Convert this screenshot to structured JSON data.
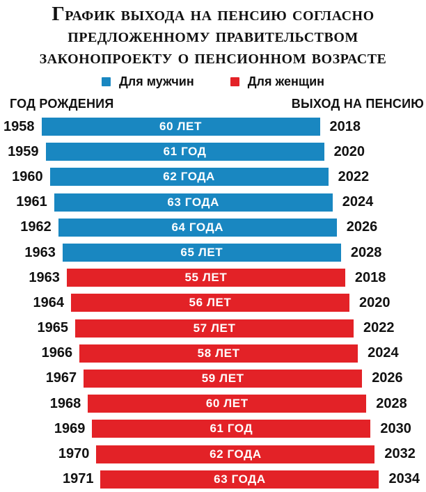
{
  "title": {
    "lines": [
      "График выхода на пенсию согласно",
      "предложенному правительством",
      "законопроекту о пенсионном возрасте"
    ]
  },
  "legend": {
    "items": [
      {
        "label": "Для мужчин",
        "series": "men"
      },
      {
        "label": "Для женщин",
        "series": "women"
      }
    ]
  },
  "columns": {
    "left": "ГОД РОЖДЕНИЯ",
    "right": "ВЫХОД НА ПЕНСИЮ"
  },
  "colors": {
    "men": "#1987c1",
    "women": "#e32227",
    "text": "#111111",
    "bar_text": "#ffffff",
    "background": "#ffffff"
  },
  "chart_data": {
    "type": "bar",
    "orientation": "horizontal",
    "title": "График выхода на пенсию согласно предложенному правительством законопроекту о пенсионном возрасте",
    "legend": [
      "Для мужчин",
      "Для женщин"
    ],
    "legend_position": "top",
    "left_column_label": "ГОД РОЖДЕНИЯ",
    "right_column_label": "ВЫХОД НА ПЕНСИЮ",
    "bar_value_unit": "возраст выхода на пенсию (лет)",
    "series": [
      {
        "name": "Для мужчин",
        "color_key": "men",
        "rows": [
          {
            "birth_year": "1958",
            "age": 60,
            "age_label": "60 ЛЕТ",
            "retirement_year": "2018"
          },
          {
            "birth_year": "1959",
            "age": 61,
            "age_label": "61 ГОД",
            "retirement_year": "2020"
          },
          {
            "birth_year": "1960",
            "age": 62,
            "age_label": "62 ГОДА",
            "retirement_year": "2022"
          },
          {
            "birth_year": "1961",
            "age": 63,
            "age_label": "63 ГОДА",
            "retirement_year": "2024"
          },
          {
            "birth_year": "1962",
            "age": 64,
            "age_label": "64 ГОДА",
            "retirement_year": "2026"
          },
          {
            "birth_year": "1963",
            "age": 65,
            "age_label": "65 ЛЕТ",
            "retirement_year": "2028"
          }
        ]
      },
      {
        "name": "Для женщин",
        "color_key": "women",
        "rows": [
          {
            "birth_year": "1963",
            "age": 55,
            "age_label": "55 ЛЕТ",
            "retirement_year": "2018"
          },
          {
            "birth_year": "1964",
            "age": 56,
            "age_label": "56 ЛЕТ",
            "retirement_year": "2020"
          },
          {
            "birth_year": "1965",
            "age": 57,
            "age_label": "57 ЛЕТ",
            "retirement_year": "2022"
          },
          {
            "birth_year": "1966",
            "age": 58,
            "age_label": "58 ЛЕТ",
            "retirement_year": "2024"
          },
          {
            "birth_year": "1967",
            "age": 59,
            "age_label": "59 ЛЕТ",
            "retirement_year": "2026"
          },
          {
            "birth_year": "1968",
            "age": 60,
            "age_label": "60 ЛЕТ",
            "retirement_year": "2028"
          },
          {
            "birth_year": "1969",
            "age": 61,
            "age_label": "61 ГОД",
            "retirement_year": "2030"
          },
          {
            "birth_year": "1970",
            "age": 62,
            "age_label": "62 ГОДА",
            "retirement_year": "2032"
          },
          {
            "birth_year": "1971",
            "age": 63,
            "age_label": "63 ГОДА",
            "retirement_year": "2034"
          }
        ]
      }
    ]
  }
}
